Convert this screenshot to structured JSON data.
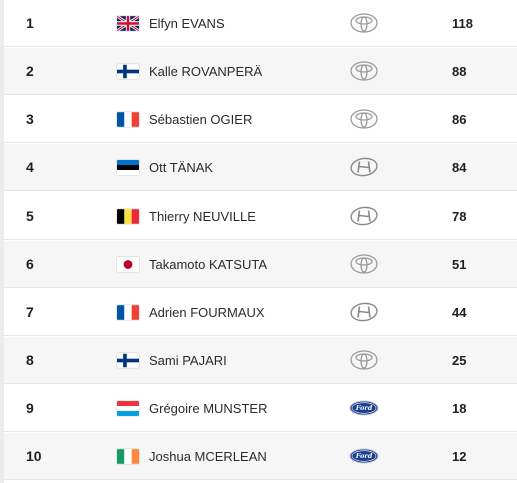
{
  "standings": [
    {
      "position": "1",
      "flag": "flag-gb-icon",
      "driver": "Elfyn EVANS",
      "manufacturer": "toyota-logo-icon",
      "points": "118"
    },
    {
      "position": "2",
      "flag": "flag-fi-icon",
      "driver": "Kalle ROVANPERÄ",
      "manufacturer": "toyota-logo-icon",
      "points": "88"
    },
    {
      "position": "3",
      "flag": "flag-fr-icon",
      "driver": "Sébastien OGIER",
      "manufacturer": "toyota-logo-icon",
      "points": "86"
    },
    {
      "position": "4",
      "flag": "flag-ee-icon",
      "driver": "Ott TÄNAK",
      "manufacturer": "hyundai-logo-icon",
      "points": "84"
    },
    {
      "position": "5",
      "flag": "flag-be-icon",
      "driver": "Thierry NEUVILLE",
      "manufacturer": "hyundai-logo-icon",
      "points": "78"
    },
    {
      "position": "6",
      "flag": "flag-jp-icon",
      "driver": "Takamoto KATSUTA",
      "manufacturer": "toyota-logo-icon",
      "points": "51"
    },
    {
      "position": "7",
      "flag": "flag-fr-icon",
      "driver": "Adrien FOURMAUX",
      "manufacturer": "hyundai-logo-icon",
      "points": "44"
    },
    {
      "position": "8",
      "flag": "flag-fi-icon",
      "driver": "Sami PAJARI",
      "manufacturer": "toyota-logo-icon",
      "points": "25"
    },
    {
      "position": "9",
      "flag": "flag-lu-icon",
      "driver": "Grégoire MUNSTER",
      "manufacturer": "ford-logo-icon",
      "points": "18"
    },
    {
      "position": "10",
      "flag": "flag-ie-icon",
      "driver": "Joshua MCERLEAN",
      "manufacturer": "ford-logo-icon",
      "points": "12"
    }
  ],
  "colors": {
    "row_shade": "#f6f6f6",
    "row_border": "#e6e6e6",
    "text": "#1f1f1f",
    "ford_blue": "#1b3f8f"
  }
}
